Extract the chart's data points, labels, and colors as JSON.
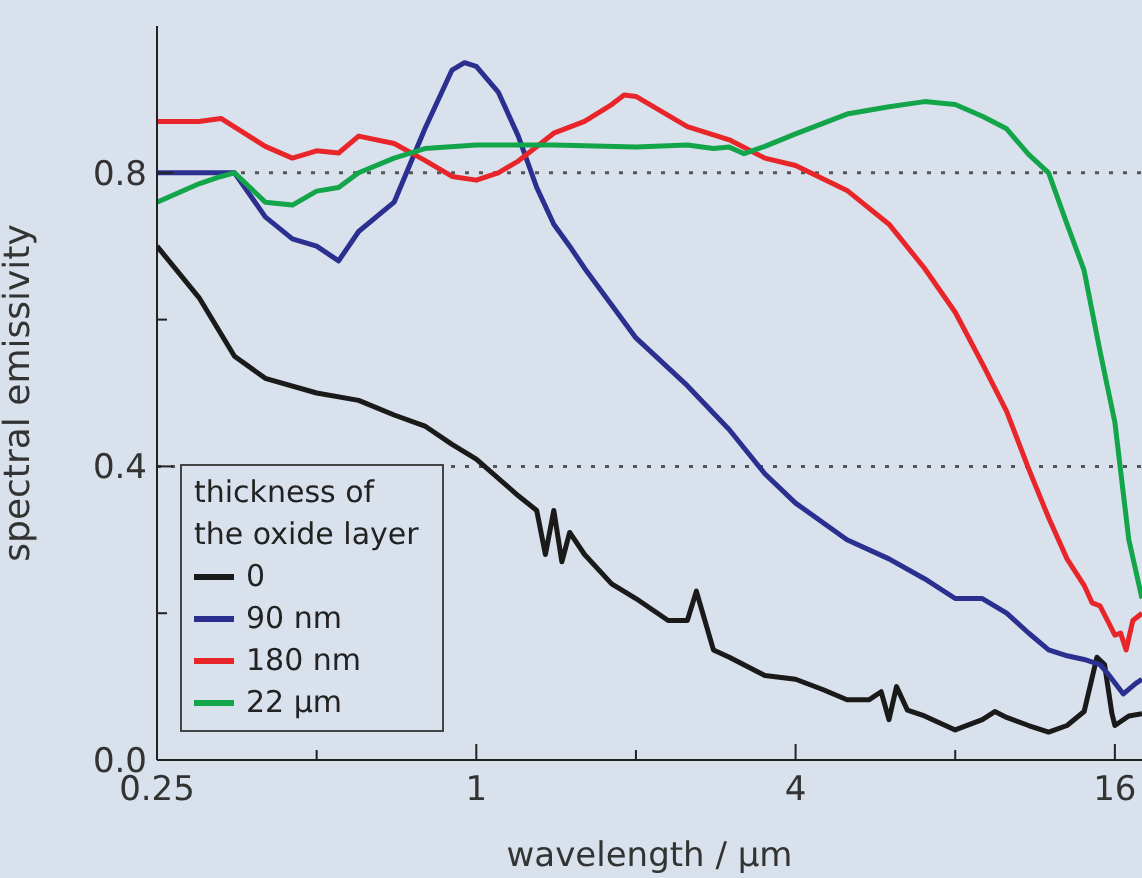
{
  "chart_data": {
    "type": "line",
    "xlabel": "wavelength / µm",
    "ylabel": "spectral emissivity",
    "legend_title": "thickness of the oxide layer",
    "log": "x",
    "grid": false,
    "legend": "bottom left",
    "line_style": "solid",
    "marker": "none",
    "xlim": [
      0.25,
      18
    ],
    "xticks": [
      0.25,
      {
        "value": 0.5,
        "label": null
      },
      1,
      {
        "value": 2,
        "label": null
      },
      4,
      {
        "value": 8,
        "label": null
      },
      16
    ],
    "ylim": [
      0,
      1
    ],
    "yticks": [
      {
        "value": 0,
        "label": "0.0"
      },
      {
        "value": 0.2,
        "label": null
      },
      0.4,
      {
        "value": 0.6,
        "label": null
      },
      0.8
    ],
    "ref_lines": [
      {
        "axis": "y",
        "value": 0.8,
        "color": "#555555",
        "line_style": "dotted"
      },
      {
        "axis": "y",
        "value": 0.4,
        "color": "#555555",
        "line_style": "dotted"
      }
    ],
    "series": [
      {
        "name": "0",
        "color": "#1a1a1a",
        "x": [
          0.25,
          0.3,
          0.35,
          0.4,
          0.5,
          0.6,
          0.7,
          0.8,
          0.9,
          1,
          1.2,
          1.3,
          1.35,
          1.4,
          1.45,
          1.5,
          1.6,
          1.8,
          2,
          2.3,
          2.5,
          2.6,
          2.8,
          3,
          3.5,
          4,
          4.5,
          5,
          5.5,
          5.8,
          6,
          6.2,
          6.5,
          7,
          8,
          9,
          9.5,
          10,
          11,
          12,
          13,
          14,
          14.8,
          15.3,
          15.8,
          16,
          17,
          18
        ],
        "values": [
          0.7,
          0.63,
          0.55,
          0.52,
          0.5,
          0.49,
          0.47,
          0.455,
          0.43,
          0.41,
          0.36,
          0.34,
          0.28,
          0.34,
          0.27,
          0.31,
          0.28,
          0.24,
          0.22,
          0.19,
          0.19,
          0.23,
          0.15,
          0.14,
          0.115,
          0.11,
          0.096,
          0.082,
          0.082,
          0.093,
          0.055,
          0.1,
          0.068,
          0.06,
          0.041,
          0.055,
          0.066,
          0.058,
          0.047,
          0.038,
          0.047,
          0.066,
          0.14,
          0.13,
          0.063,
          0.047,
          0.06,
          0.063
        ]
      },
      {
        "name": "90 nm",
        "color": "#2b2f8f",
        "x": [
          0.25,
          0.3,
          0.35,
          0.4,
          0.45,
          0.5,
          0.55,
          0.6,
          0.7,
          0.8,
          0.9,
          0.95,
          1,
          1.1,
          1.2,
          1.3,
          1.4,
          1.5,
          1.6,
          1.8,
          2,
          2.5,
          3,
          3.5,
          4,
          5,
          6,
          7,
          8,
          9,
          10,
          11,
          12,
          13,
          14,
          15,
          15.5,
          16.6,
          17.5,
          18
        ],
        "values": [
          0.8,
          0.8,
          0.8,
          0.74,
          0.71,
          0.7,
          0.68,
          0.72,
          0.76,
          0.86,
          0.94,
          0.95,
          0.945,
          0.91,
          0.85,
          0.78,
          0.73,
          0.7,
          0.67,
          0.62,
          0.575,
          0.51,
          0.45,
          0.39,
          0.35,
          0.3,
          0.274,
          0.247,
          0.22,
          0.22,
          0.2,
          0.173,
          0.15,
          0.142,
          0.137,
          0.13,
          0.118,
          0.09,
          0.104,
          0.11
        ]
      },
      {
        "name": "180 nm",
        "color": "#e8262a",
        "x": [
          0.25,
          0.3,
          0.33,
          0.4,
          0.45,
          0.5,
          0.55,
          0.6,
          0.7,
          0.8,
          0.9,
          1,
          1.1,
          1.2,
          1.4,
          1.6,
          1.8,
          1.9,
          2,
          2.5,
          3,
          3.5,
          4,
          5,
          6,
          7,
          8,
          9,
          10,
          11,
          12,
          13,
          14,
          14.5,
          15,
          15.5,
          16,
          16.4,
          16.8,
          17.3,
          18
        ],
        "values": [
          0.87,
          0.87,
          0.874,
          0.836,
          0.82,
          0.83,
          0.827,
          0.85,
          0.84,
          0.817,
          0.795,
          0.79,
          0.8,
          0.816,
          0.854,
          0.87,
          0.893,
          0.906,
          0.904,
          0.863,
          0.845,
          0.82,
          0.81,
          0.776,
          0.73,
          0.67,
          0.61,
          0.54,
          0.475,
          0.397,
          0.33,
          0.274,
          0.238,
          0.214,
          0.21,
          0.19,
          0.17,
          0.173,
          0.15,
          0.19,
          0.2
        ]
      },
      {
        "name": "22 µm",
        "color": "#12a54a",
        "x": [
          0.25,
          0.3,
          0.33,
          0.35,
          0.4,
          0.45,
          0.5,
          0.55,
          0.6,
          0.7,
          0.8,
          1,
          1.4,
          2,
          2.5,
          2.8,
          3,
          3.2,
          3.5,
          4,
          5,
          6,
          7,
          8,
          9,
          10,
          11,
          12,
          13,
          14,
          15,
          16,
          17,
          18
        ],
        "values": [
          0.76,
          0.785,
          0.795,
          0.8,
          0.76,
          0.756,
          0.775,
          0.78,
          0.8,
          0.82,
          0.833,
          0.838,
          0.838,
          0.835,
          0.838,
          0.833,
          0.835,
          0.826,
          0.836,
          0.853,
          0.88,
          0.89,
          0.897,
          0.893,
          0.877,
          0.86,
          0.825,
          0.8,
          0.73,
          0.667,
          0.557,
          0.46,
          0.3,
          0.22
        ]
      }
    ]
  }
}
